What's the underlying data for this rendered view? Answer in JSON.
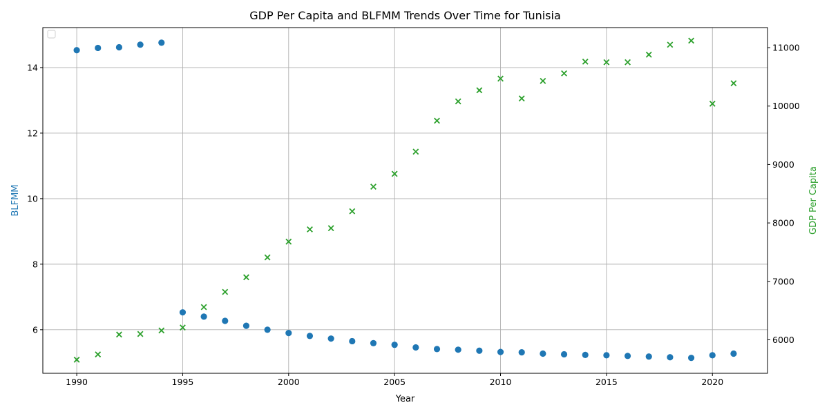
{
  "chart_data": {
    "type": "scatter",
    "title": "GDP Per Capita and BLFMM Trends Over Time for Tunisia",
    "xlabel": "Year",
    "ylabel_left": "BLFMM",
    "ylabel_right": "GDP Per Capita",
    "xlim": [
      1988.4,
      2022.6
    ],
    "ylim_left": [
      4.67,
      15.22
    ],
    "ylim_right": [
      5427,
      11343
    ],
    "x_ticks": [
      1990,
      1995,
      2000,
      2005,
      2010,
      2015,
      2020
    ],
    "y_left_ticks": [
      6,
      8,
      10,
      12,
      14
    ],
    "y_right_ticks": [
      6000,
      7000,
      8000,
      9000,
      10000,
      11000
    ],
    "grid": true,
    "legend": "top-left (empty)",
    "colors": {
      "blfmm": "#1f77b4",
      "gdp": "#2ca02c"
    },
    "x": [
      1990,
      1991,
      1992,
      1993,
      1994,
      1995,
      1996,
      1997,
      1998,
      1999,
      2000,
      2001,
      2002,
      2003,
      2004,
      2005,
      2006,
      2007,
      2008,
      2009,
      2010,
      2011,
      2012,
      2013,
      2014,
      2015,
      2016,
      2017,
      2018,
      2019,
      2020,
      2021
    ],
    "series": [
      {
        "axis": "left",
        "marker": "circle",
        "values": [
          14.53,
          14.6,
          14.62,
          14.7,
          14.76,
          6.53,
          6.4,
          6.27,
          6.12,
          6.0,
          5.9,
          5.81,
          5.73,
          5.65,
          5.59,
          5.54,
          5.46,
          5.41,
          5.39,
          5.36,
          5.32,
          5.31,
          5.27,
          5.25,
          5.23,
          5.22,
          5.2,
          5.18,
          5.16,
          5.14,
          5.22,
          5.27
        ]
      },
      {
        "axis": "right",
        "marker": "x",
        "values": [
          5660,
          5750,
          6090,
          6100,
          6160,
          6210,
          6560,
          6820,
          7070,
          7410,
          7680,
          7890,
          7910,
          8200,
          8620,
          8840,
          9220,
          9750,
          10080,
          10270,
          10470,
          10130,
          10430,
          10560,
          10760,
          10750,
          10750,
          10880,
          11050,
          11120,
          10040,
          10390
        ]
      }
    ]
  }
}
